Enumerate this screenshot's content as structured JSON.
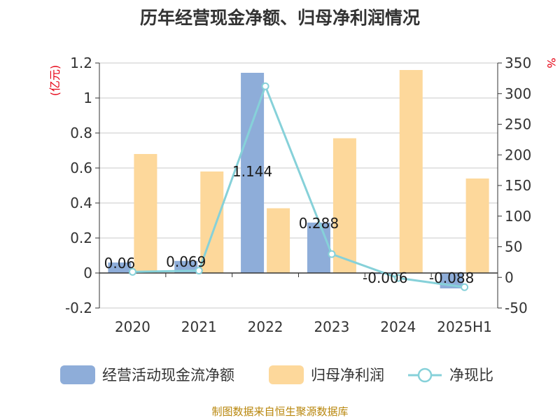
{
  "chart_data": {
    "type": "bar",
    "title": "历年经营现金净额、归母净利润情况",
    "categories": [
      "2020",
      "2021",
      "2022",
      "2023",
      "2024",
      "2025H1"
    ],
    "y_left": {
      "unit": "(亿元)",
      "min": -0.2,
      "max": 1.2,
      "ticks": [
        "-0.2",
        "0",
        "0.2",
        "0.4",
        "0.6",
        "0.8",
        "1",
        "1.2"
      ]
    },
    "y_right": {
      "unit": "%",
      "min": -50,
      "max": 350,
      "ticks": [
        "-50",
        "0",
        "50",
        "100",
        "150",
        "200",
        "250",
        "300",
        "350"
      ]
    },
    "grid": true,
    "legend_position": "bottom",
    "series": [
      {
        "name": "经营活动现金流净额",
        "type": "bar",
        "axis": "left",
        "color": "#8eadd9",
        "values": [
          0.06,
          0.069,
          1.144,
          0.288,
          -0.006,
          -0.088
        ],
        "labels": [
          "0.06",
          "0.069",
          "1.144",
          "0.288",
          "-0.006",
          "-0.088"
        ]
      },
      {
        "name": "归母净利润",
        "type": "bar",
        "axis": "left",
        "color": "#fdd89b",
        "values": [
          0.68,
          0.58,
          0.37,
          0.77,
          1.16,
          0.54
        ]
      },
      {
        "name": "净现比",
        "type": "line",
        "axis": "right",
        "color": "#86d1d9",
        "values": [
          9,
          11,
          312,
          38,
          -1,
          -16
        ]
      }
    ]
  },
  "source_note": "制图数据来自恒生聚源数据库"
}
